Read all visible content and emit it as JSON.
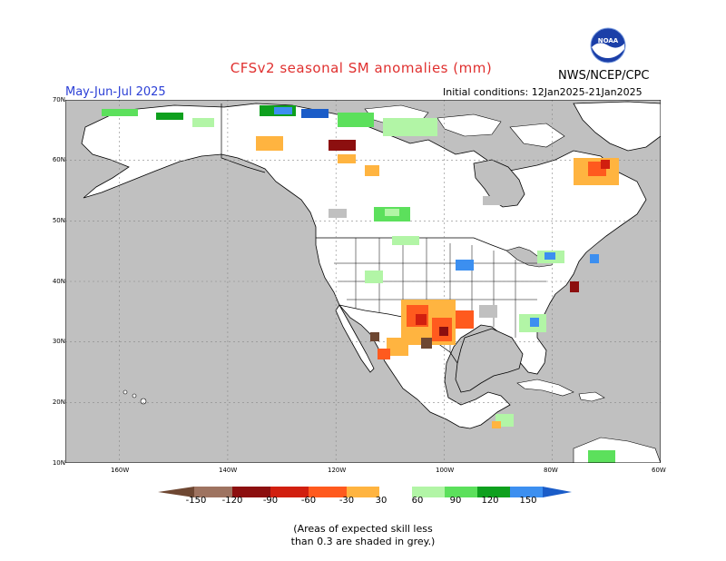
{
  "header": {
    "title": "CFSv2 seasonal SM anomalies (mm)",
    "period": "May-Jun-Jul 2025",
    "initial_conditions": "Initial conditions: 12Jan2025-21Jan2025",
    "agency": "NWS/NCEP/CPC",
    "logo_text": "NOAA"
  },
  "map": {
    "lat_labels": [
      "70N",
      "60N",
      "50N",
      "40N",
      "30N",
      "20N",
      "10N"
    ],
    "lon_labels": [
      "160W",
      "140W",
      "120W",
      "100W",
      "80W",
      "60W"
    ],
    "colors": {
      "ocean": "#c0c0c0",
      "land": "#ffffff",
      "low_skill": "#c0c0c0"
    }
  },
  "legend": {
    "tick_labels": [
      "-150",
      "-120",
      "-90",
      "-60",
      "-30",
      "30",
      "60",
      "90",
      "120",
      "150"
    ],
    "bins": [
      {
        "range": "< -150",
        "color": "#6e4732"
      },
      {
        "range": "-150 to -120",
        "color": "#9e7360"
      },
      {
        "range": "-120 to -90",
        "color": "#8c0f0f"
      },
      {
        "range": "-90 to -60",
        "color": "#d11f0f"
      },
      {
        "range": "-60 to -30",
        "color": "#ff5a1e"
      },
      {
        "range": "-30 to 30",
        "color": "#ffb440"
      },
      {
        "range": "neutral",
        "color": "#ffffff"
      },
      {
        "range": "30 to 60",
        "color": "#b2f5a6"
      },
      {
        "range": "60 to 90",
        "color": "#5ce05c"
      },
      {
        "range": "90 to 120",
        "color": "#0ea01e"
      },
      {
        "range": "120 to 150",
        "color": "#3c8ff0"
      },
      {
        "range": "> 150",
        "color": "#1a5cc8"
      }
    ]
  },
  "footnote": {
    "line1": "(Areas of expected skill less",
    "line2": "than 0.3 are shaded in grey.)"
  }
}
